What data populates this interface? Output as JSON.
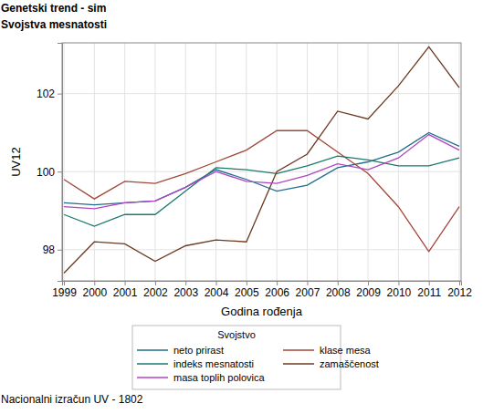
{
  "chart_data": {
    "type": "line",
    "title": "Genetski trend - sim",
    "subtitle": "Svojstva mesnatosti",
    "xlabel": "Godina rođenja",
    "ylabel": "UV12",
    "legend_title": "Svojstvo",
    "footnote": "Nacionalni izračun UV - 1802",
    "x": [
      1999,
      2000,
      2001,
      2002,
      2003,
      2004,
      2005,
      2006,
      2007,
      2008,
      2009,
      2010,
      2011,
      2012
    ],
    "xlim": [
      1998.94,
      2012.06
    ],
    "xticks": [
      1999,
      2000,
      2001,
      2002,
      2003,
      2004,
      2005,
      2006,
      2007,
      2008,
      2009,
      2010,
      2011,
      2012
    ],
    "ylim": [
      97.2,
      103.3
    ],
    "yticks": [
      98,
      100,
      102
    ],
    "grid": true,
    "legend": "bottom",
    "series": [
      {
        "name": "neto prirast",
        "color": "#1f6e8c",
        "values": [
          99.2,
          99.15,
          99.2,
          99.25,
          99.6,
          100.05,
          99.8,
          99.5,
          99.65,
          100.1,
          100.25,
          100.5,
          101.0,
          100.65
        ]
      },
      {
        "name": "klase mesa",
        "color": "#a3473a",
        "values": [
          99.8,
          99.3,
          99.75,
          99.7,
          99.95,
          100.25,
          100.55,
          101.05,
          101.05,
          100.5,
          99.95,
          99.1,
          97.95,
          99.1
        ]
      },
      {
        "name": "indeks mesnatosti",
        "color": "#1a7a6e",
        "values": [
          98.9,
          98.6,
          98.9,
          98.9,
          99.5,
          100.1,
          100.05,
          99.95,
          100.15,
          100.4,
          100.3,
          100.15,
          100.15,
          100.35
        ]
      },
      {
        "name": "zamaščenost",
        "color": "#6b3a1f",
        "values": [
          97.4,
          98.2,
          98.15,
          97.7,
          98.1,
          98.25,
          98.2,
          100.0,
          100.45,
          101.55,
          101.35,
          102.2,
          103.2,
          102.15
        ]
      },
      {
        "name": "masa toplih polovica",
        "color": "#b044c4",
        "values": [
          99.1,
          99.05,
          99.2,
          99.25,
          99.6,
          100.0,
          99.75,
          99.7,
          99.9,
          100.2,
          100.05,
          100.35,
          100.95,
          100.55
        ]
      }
    ]
  }
}
